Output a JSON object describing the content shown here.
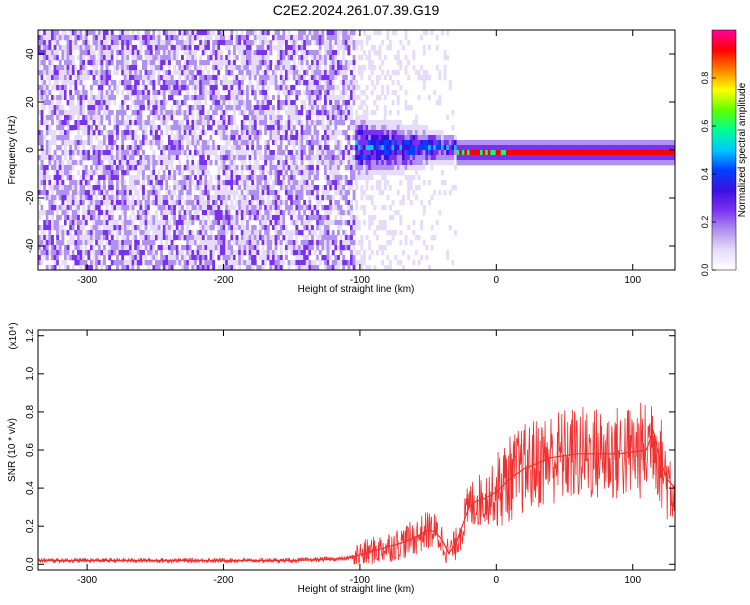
{
  "title": "C2E2.2024.261.07.39.G19",
  "chart_data": [
    {
      "type": "heatmap",
      "name": "spectrogram",
      "xlabel": "Height of straight line (km)",
      "ylabel": "Frequency (Hz)",
      "xlim": [
        -336,
        131
      ],
      "ylim": [
        -50,
        50
      ],
      "xticks": [
        -300,
        -200,
        -100,
        0,
        100
      ],
      "yticks": [
        -40,
        -20,
        0,
        20,
        40
      ],
      "colorbar": {
        "label": "Normalized spectral amplitude",
        "range": [
          0.0,
          1.0
        ],
        "ticks": [
          0.0,
          0.2,
          0.4,
          0.6,
          0.8
        ],
        "tick_labels": [
          "0.0",
          "0.2",
          "0.4",
          "0.6",
          "0.8"
        ],
        "colormap": [
          "#ffffff",
          "#e6dcfa",
          "#b090f0",
          "#7a30f0",
          "#3a10e0",
          "#0040ff",
          "#00c8ff",
          "#00ff90",
          "#60ff00",
          "#ffff00",
          "#ff8000",
          "#ff0000",
          "#ff00a0"
        ]
      },
      "regions": [
        {
          "x_range": [
            -336,
            -105
          ],
          "description": "broadband noise",
          "amplitude": 0.1,
          "freq_range": [
            -50,
            50
          ]
        },
        {
          "x_range": [
            -105,
            -30
          ],
          "description": "signal onset",
          "amplitude": 0.35,
          "center_freq": 2
        },
        {
          "x_range": [
            -30,
            131
          ],
          "description": "coherent carrier",
          "amplitude": 0.95,
          "center_freq": 0
        }
      ]
    },
    {
      "type": "line",
      "name": "snr",
      "xlabel": "Height of straight line (km)",
      "ylabel": "SNR (10 * v/v)",
      "y_scale_label": "(x10⁴)",
      "xlim": [
        -336,
        131
      ],
      "ylim": [
        -0.03,
        1.23
      ],
      "xticks": [
        -300,
        -200,
        -100,
        0,
        100
      ],
      "yticks": [
        0.0,
        0.2,
        0.4,
        0.6,
        0.8,
        1.0,
        1.2
      ],
      "ytick_labels": [
        "0.0",
        "0.2",
        "0.4",
        "0.6",
        "0.8",
        "1.0",
        "1.2"
      ],
      "color": "#ee3030",
      "series": [
        {
          "name": "SNR",
          "x": [
            -336,
            -300,
            -250,
            -200,
            -150,
            -110,
            -100,
            -90,
            -80,
            -70,
            -60,
            -50,
            -45,
            -40,
            -35,
            -30,
            -25,
            -20,
            -15,
            -10,
            0,
            10,
            20,
            30,
            40,
            50,
            60,
            70,
            80,
            90,
            100,
            110,
            115,
            120,
            125,
            131
          ],
          "values": [
            0.02,
            0.02,
            0.02,
            0.02,
            0.02,
            0.03,
            0.05,
            0.07,
            0.09,
            0.11,
            0.14,
            0.18,
            0.17,
            0.13,
            0.06,
            0.1,
            0.2,
            0.3,
            0.33,
            0.34,
            0.38,
            0.45,
            0.5,
            0.53,
            0.56,
            0.57,
            0.58,
            0.58,
            0.58,
            0.58,
            0.59,
            0.6,
            0.7,
            0.55,
            0.45,
            0.4
          ]
        }
      ]
    }
  ]
}
